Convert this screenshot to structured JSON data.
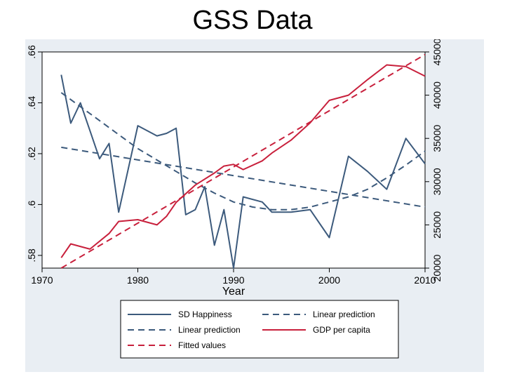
{
  "slide": {
    "title": "GSS Data"
  },
  "colors": {
    "panel_bg": "#e9eef3",
    "blue": "#3c5a7c",
    "red": "#c8203c",
    "frame": "#000000"
  },
  "chart_data": {
    "type": "line",
    "title": "GSS Data",
    "xlabel": "Year",
    "ylabel_left": "",
    "ylabel_right": "",
    "xlim": [
      1970,
      2010
    ],
    "ylim_left": [
      0.575,
      0.66
    ],
    "ylim_right": [
      20000,
      45000
    ],
    "x_ticks": [
      1970,
      1980,
      1990,
      2000,
      2010
    ],
    "y_left_ticks": [
      ".58",
      ".6",
      ".62",
      ".64",
      ".66"
    ],
    "y_right_ticks": [
      20000,
      25000,
      30000,
      35000,
      40000,
      45000
    ],
    "grid": false,
    "legend_position": "bottom",
    "series": [
      {
        "name": "SD Happiness",
        "axis": "left",
        "style": "solid",
        "color": "#3c5a7c",
        "x": [
          1972,
          1973,
          1974,
          1975,
          1976,
          1977,
          1978,
          1980,
          1982,
          1983,
          1984,
          1985,
          1986,
          1987,
          1988,
          1989,
          1990,
          1991,
          1993,
          1994,
          1996,
          1998,
          2000,
          2002,
          2004,
          2006,
          2008,
          2010
        ],
        "y": [
          0.651,
          0.632,
          0.64,
          0.629,
          0.618,
          0.624,
          0.597,
          0.631,
          0.627,
          0.628,
          0.63,
          0.596,
          0.598,
          0.607,
          0.584,
          0.598,
          0.575,
          0.603,
          0.601,
          0.597,
          0.597,
          0.598,
          0.587,
          0.619,
          0.613,
          0.606,
          0.626,
          0.616
        ]
      },
      {
        "name": "Linear prediction",
        "axis": "left",
        "style": "dashed",
        "color": "#3c5a7c",
        "x": [
          1972,
          2010
        ],
        "y": [
          0.6225,
          0.599
        ]
      },
      {
        "name": "Linear prediction",
        "axis": "left",
        "style": "dashed",
        "color": "#3c5a7c",
        "x": [
          1972,
          1974,
          1976,
          1978,
          1980,
          1982,
          1984,
          1986,
          1988,
          1990,
          1992,
          1994,
          1996,
          1998,
          2000,
          2002,
          2004,
          2006,
          2008,
          2010
        ],
        "y": [
          0.644,
          0.6385,
          0.633,
          0.6275,
          0.622,
          0.6175,
          0.613,
          0.6085,
          0.6045,
          0.601,
          0.599,
          0.598,
          0.598,
          0.599,
          0.601,
          0.603,
          0.606,
          0.6105,
          0.6155,
          0.621
        ]
      },
      {
        "name": "GDP per capita",
        "axis": "right",
        "style": "solid",
        "color": "#c8203c",
        "x": [
          1972,
          1973,
          1975,
          1977,
          1978,
          1980,
          1982,
          1983,
          1984,
          1986,
          1988,
          1989,
          1990,
          1991,
          1993,
          1994,
          1996,
          1998,
          2000,
          2002,
          2004,
          2006,
          2008,
          2010
        ],
        "y": [
          21200,
          22800,
          22200,
          24000,
          25400,
          25600,
          25000,
          26000,
          27600,
          29600,
          31000,
          31800,
          32000,
          31400,
          32400,
          33300,
          34800,
          36800,
          39400,
          40000,
          41800,
          43500,
          43300,
          42200
        ]
      },
      {
        "name": "Fitted values",
        "axis": "right",
        "style": "dashed",
        "color": "#c8203c",
        "x": [
          1972,
          2010
        ],
        "y": [
          20000,
          44700
        ]
      }
    ],
    "legend": [
      "SD Happiness",
      "Linear prediction",
      "Linear prediction",
      "GDP per capita",
      "Fitted values"
    ]
  }
}
